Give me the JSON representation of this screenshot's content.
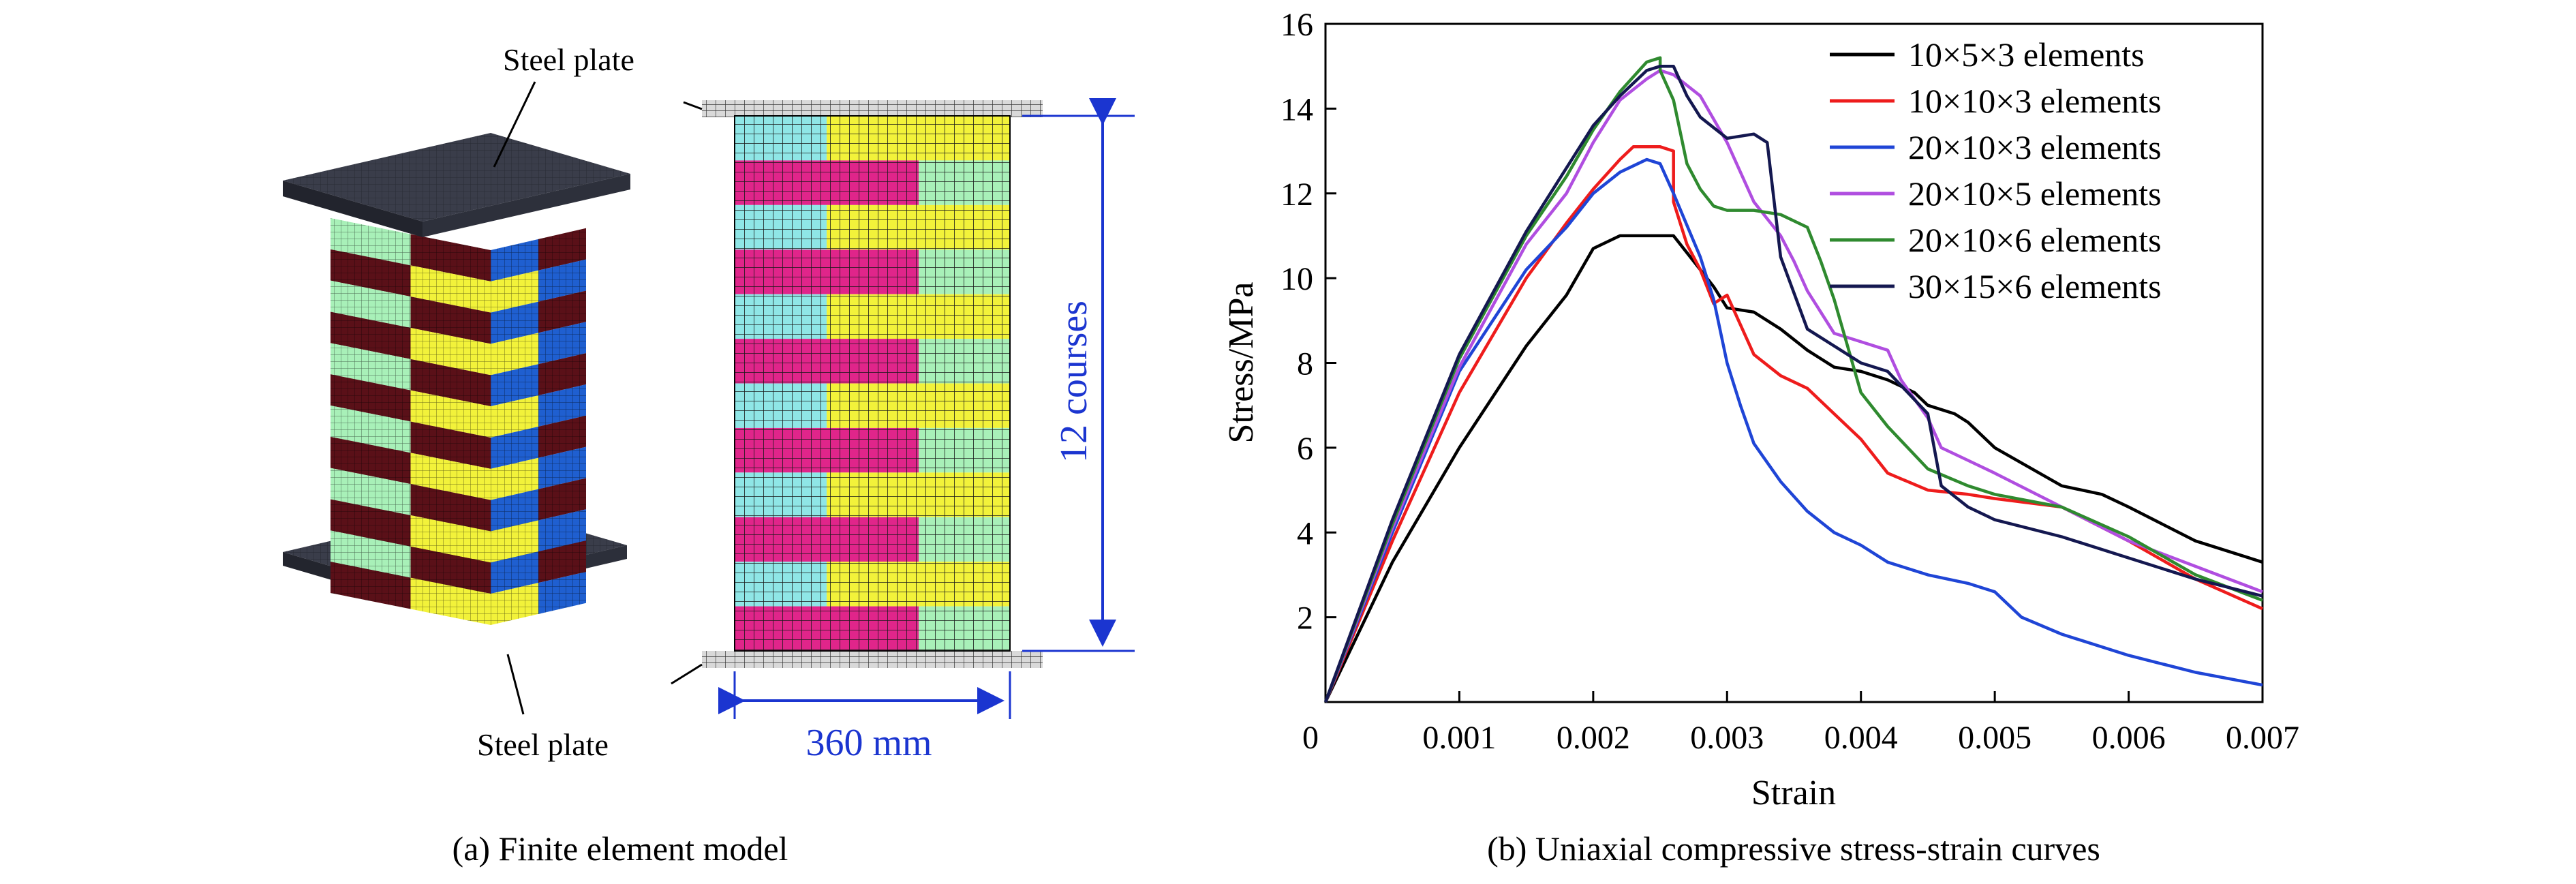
{
  "panel_a": {
    "caption": "(a) Finite element model",
    "top_plate_label": "Steel plate",
    "bottom_plate_label": "Steel plate",
    "width_dimension": "360 mm",
    "height_dimension": "12 courses",
    "courses": 12
  },
  "panel_b": {
    "caption": "(b) Uniaxial compressive stress-strain curves"
  },
  "colors": {
    "cyan_brick": "#8fe6e6",
    "yellow_brick": "#f2f23a",
    "magenta_brick": "#e0258a",
    "light_green_brick": "#a8f0b8",
    "dark_steel": "#3a3d4a",
    "blue_brick": "#1f5fd0",
    "dark_red_brick": "#5a1018",
    "dimension_blue": "#1b35d0"
  },
  "chart_data": {
    "type": "line",
    "title": "",
    "xlabel": "Strain",
    "ylabel": "Stress/MPa",
    "xlim": [
      0,
      0.007
    ],
    "ylim": [
      0,
      16
    ],
    "xticks": [
      0,
      0.001,
      0.002,
      0.003,
      0.004,
      0.005,
      0.006,
      0.007
    ],
    "xtick_labels": [
      "0",
      "0.001",
      "0.002",
      "0.003",
      "0.004",
      "0.005",
      "0.006",
      "0.007"
    ],
    "yticks": [
      2,
      4,
      6,
      8,
      10,
      12,
      14,
      16
    ],
    "ytick_labels": [
      "2",
      "4",
      "6",
      "8",
      "10",
      "12",
      "14",
      "16"
    ],
    "legend_position": "top-right",
    "grid": false,
    "series": [
      {
        "name": "10×5×3 elements",
        "color": "#000000",
        "points": [
          [
            0,
            0
          ],
          [
            0.0005,
            3.3
          ],
          [
            0.001,
            6.0
          ],
          [
            0.0015,
            8.4
          ],
          [
            0.0018,
            9.6
          ],
          [
            0.002,
            10.7
          ],
          [
            0.0022,
            11.0
          ],
          [
            0.0024,
            11.0
          ],
          [
            0.0026,
            11.0
          ],
          [
            0.0027,
            10.6
          ],
          [
            0.0028,
            10.2
          ],
          [
            0.0029,
            9.8
          ],
          [
            0.003,
            9.3
          ],
          [
            0.0032,
            9.2
          ],
          [
            0.0034,
            8.8
          ],
          [
            0.0036,
            8.3
          ],
          [
            0.0038,
            7.9
          ],
          [
            0.004,
            7.8
          ],
          [
            0.0042,
            7.6
          ],
          [
            0.0044,
            7.3
          ],
          [
            0.0045,
            7.0
          ],
          [
            0.0047,
            6.8
          ],
          [
            0.0048,
            6.6
          ],
          [
            0.005,
            6.0
          ],
          [
            0.0055,
            5.1
          ],
          [
            0.0058,
            4.9
          ],
          [
            0.006,
            4.6
          ],
          [
            0.0065,
            3.8
          ],
          [
            0.007,
            3.3
          ]
        ]
      },
      {
        "name": "10×10×3 elements",
        "color": "#ee1c1c",
        "points": [
          [
            0,
            0
          ],
          [
            0.0005,
            3.8
          ],
          [
            0.001,
            7.3
          ],
          [
            0.0015,
            10.0
          ],
          [
            0.0018,
            11.3
          ],
          [
            0.002,
            12.1
          ],
          [
            0.0022,
            12.8
          ],
          [
            0.0023,
            13.1
          ],
          [
            0.0025,
            13.1
          ],
          [
            0.0026,
            13.0
          ],
          [
            0.0026,
            11.8
          ],
          [
            0.0027,
            10.8
          ],
          [
            0.0028,
            10.2
          ],
          [
            0.0029,
            9.4
          ],
          [
            0.003,
            9.6
          ],
          [
            0.0032,
            8.2
          ],
          [
            0.0034,
            7.7
          ],
          [
            0.0036,
            7.4
          ],
          [
            0.0038,
            6.8
          ],
          [
            0.004,
            6.2
          ],
          [
            0.0042,
            5.4
          ],
          [
            0.0045,
            5.0
          ],
          [
            0.0048,
            4.9
          ],
          [
            0.005,
            4.8
          ],
          [
            0.0055,
            4.6
          ],
          [
            0.006,
            3.8
          ],
          [
            0.0065,
            2.9
          ],
          [
            0.007,
            2.2
          ]
        ]
      },
      {
        "name": "20×10×3 elements",
        "color": "#1f45d6",
        "points": [
          [
            0,
            0
          ],
          [
            0.0005,
            4.0
          ],
          [
            0.001,
            7.8
          ],
          [
            0.0015,
            10.2
          ],
          [
            0.0018,
            11.2
          ],
          [
            0.002,
            12.0
          ],
          [
            0.0022,
            12.5
          ],
          [
            0.0024,
            12.8
          ],
          [
            0.0025,
            12.7
          ],
          [
            0.0026,
            12.0
          ],
          [
            0.0028,
            10.5
          ],
          [
            0.0029,
            9.5
          ],
          [
            0.003,
            8.0
          ],
          [
            0.0031,
            7.0
          ],
          [
            0.0032,
            6.1
          ],
          [
            0.0034,
            5.2
          ],
          [
            0.0036,
            4.5
          ],
          [
            0.0038,
            4.0
          ],
          [
            0.004,
            3.7
          ],
          [
            0.0042,
            3.3
          ],
          [
            0.0045,
            3.0
          ],
          [
            0.0048,
            2.8
          ],
          [
            0.005,
            2.6
          ],
          [
            0.0052,
            2.0
          ],
          [
            0.0055,
            1.6
          ],
          [
            0.006,
            1.1
          ],
          [
            0.0065,
            0.7
          ],
          [
            0.007,
            0.4
          ]
        ]
      },
      {
        "name": "20×10×5 elements",
        "color": "#b04ee0",
        "points": [
          [
            0,
            0
          ],
          [
            0.0005,
            4.1
          ],
          [
            0.001,
            7.9
          ],
          [
            0.0015,
            10.8
          ],
          [
            0.0018,
            12.0
          ],
          [
            0.002,
            13.2
          ],
          [
            0.0022,
            14.2
          ],
          [
            0.0024,
            14.7
          ],
          [
            0.0025,
            14.9
          ],
          [
            0.0026,
            14.8
          ],
          [
            0.0028,
            14.3
          ],
          [
            0.003,
            13.2
          ],
          [
            0.0032,
            11.8
          ],
          [
            0.0034,
            11.0
          ],
          [
            0.0035,
            10.4
          ],
          [
            0.0036,
            9.7
          ],
          [
            0.0038,
            8.7
          ],
          [
            0.004,
            8.5
          ],
          [
            0.0042,
            8.3
          ],
          [
            0.0043,
            7.6
          ],
          [
            0.0045,
            6.7
          ],
          [
            0.0046,
            6.0
          ],
          [
            0.0048,
            5.7
          ],
          [
            0.005,
            5.4
          ],
          [
            0.0055,
            4.6
          ],
          [
            0.006,
            3.8
          ],
          [
            0.0065,
            3.2
          ],
          [
            0.007,
            2.6
          ]
        ]
      },
      {
        "name": "20×10×6 elements",
        "color": "#2f8a2f",
        "points": [
          [
            0,
            0
          ],
          [
            0.0005,
            4.2
          ],
          [
            0.001,
            8.1
          ],
          [
            0.0015,
            11.0
          ],
          [
            0.0018,
            12.4
          ],
          [
            0.002,
            13.5
          ],
          [
            0.0022,
            14.4
          ],
          [
            0.0024,
            15.1
          ],
          [
            0.0025,
            15.2
          ],
          [
            0.0025,
            14.9
          ],
          [
            0.0026,
            14.2
          ],
          [
            0.0027,
            12.7
          ],
          [
            0.0028,
            12.1
          ],
          [
            0.0029,
            11.7
          ],
          [
            0.003,
            11.6
          ],
          [
            0.0032,
            11.6
          ],
          [
            0.0034,
            11.5
          ],
          [
            0.0036,
            11.2
          ],
          [
            0.0037,
            10.4
          ],
          [
            0.0038,
            9.5
          ],
          [
            0.004,
            7.3
          ],
          [
            0.0042,
            6.5
          ],
          [
            0.0045,
            5.5
          ],
          [
            0.0048,
            5.1
          ],
          [
            0.005,
            4.9
          ],
          [
            0.0055,
            4.6
          ],
          [
            0.006,
            3.9
          ],
          [
            0.0065,
            3.0
          ],
          [
            0.007,
            2.4
          ]
        ]
      },
      {
        "name": "30×15×6 elements",
        "color": "#141850",
        "points": [
          [
            0,
            0
          ],
          [
            0.0005,
            4.3
          ],
          [
            0.001,
            8.2
          ],
          [
            0.0015,
            11.1
          ],
          [
            0.0018,
            12.6
          ],
          [
            0.002,
            13.6
          ],
          [
            0.0022,
            14.3
          ],
          [
            0.0024,
            14.9
          ],
          [
            0.0025,
            15.0
          ],
          [
            0.0026,
            15.0
          ],
          [
            0.0027,
            14.3
          ],
          [
            0.0028,
            13.8
          ],
          [
            0.003,
            13.3
          ],
          [
            0.0032,
            13.4
          ],
          [
            0.0033,
            13.2
          ],
          [
            0.0034,
            10.5
          ],
          [
            0.0036,
            8.8
          ],
          [
            0.0038,
            8.4
          ],
          [
            0.004,
            8.0
          ],
          [
            0.0042,
            7.8
          ],
          [
            0.0045,
            6.8
          ],
          [
            0.0046,
            5.1
          ],
          [
            0.0048,
            4.6
          ],
          [
            0.005,
            4.3
          ],
          [
            0.0055,
            3.9
          ],
          [
            0.006,
            3.4
          ],
          [
            0.0065,
            2.9
          ],
          [
            0.007,
            2.5
          ]
        ]
      }
    ]
  }
}
